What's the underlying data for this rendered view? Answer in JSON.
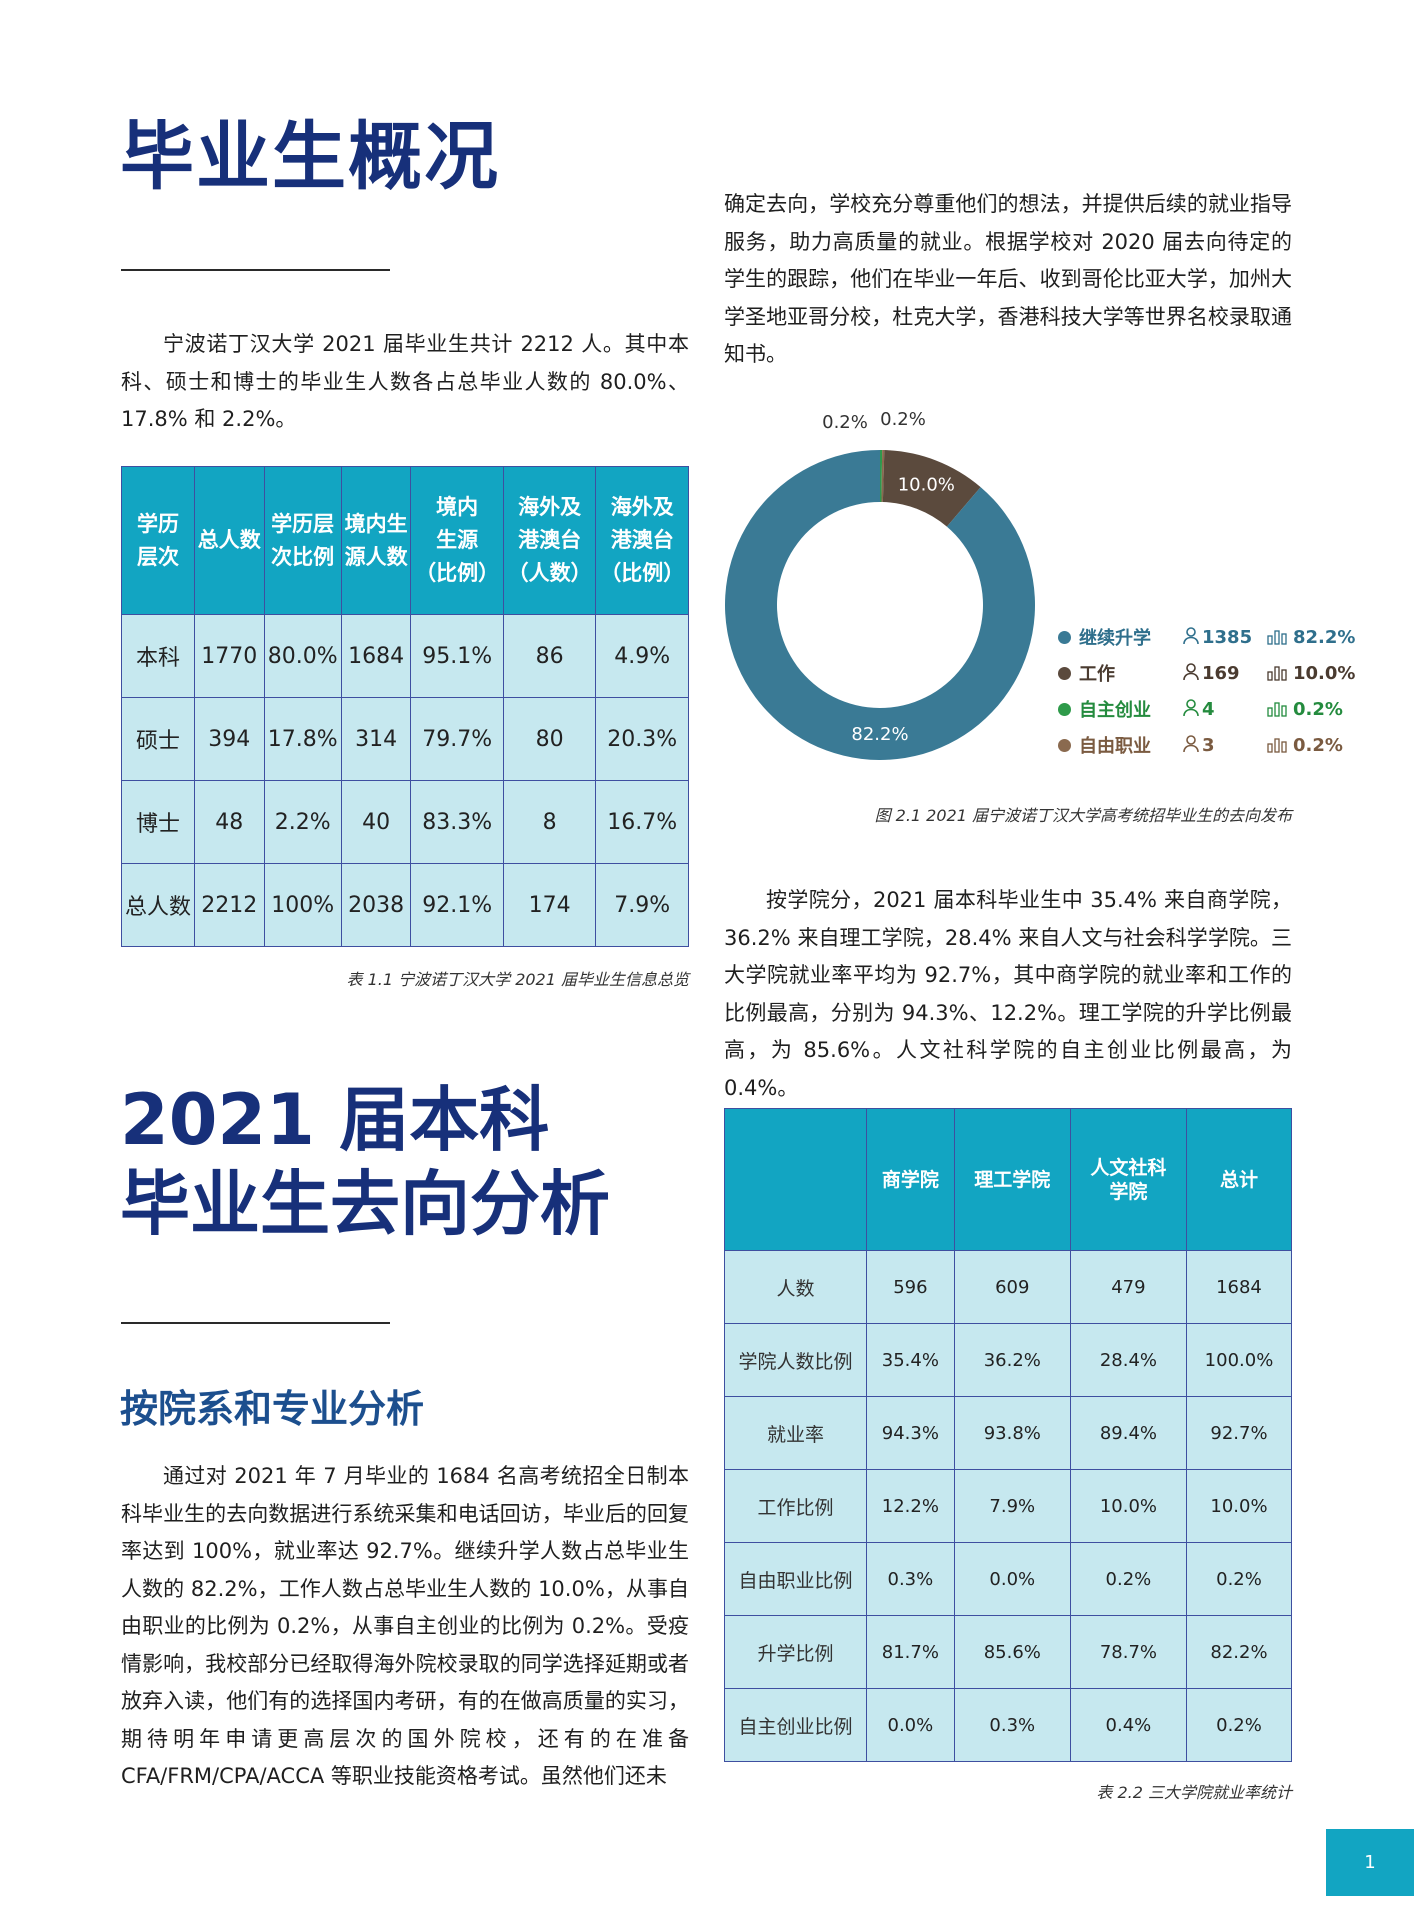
{
  "section1": {
    "title": "毕业生概况",
    "intro": "宁波诺丁汉大学 2021 届毕业生共计 2212 人。其中本科、硕士和博士的毕业生人数各占总毕业人数的 80.0%、17.8% 和 2.2%。"
  },
  "table1": {
    "headers": [
      "学历层次",
      "总人数",
      "学历层次比例",
      "境内生源人数",
      "境内生源（比例）",
      "海外及港澳台（人数）",
      "海外及港澳台（比例）"
    ],
    "header_lines": [
      [
        "学历",
        "层次"
      ],
      [
        "总人数"
      ],
      [
        "学历层",
        "次比例"
      ],
      [
        "境内生",
        "源人数"
      ],
      [
        "境内",
        "生源",
        "（比例）"
      ],
      [
        "海外及",
        "港澳台",
        "（人数）"
      ],
      [
        "海外及",
        "港澳台",
        "（比例）"
      ]
    ],
    "rows": [
      [
        "本科",
        "1770",
        "80.0%",
        "1684",
        "95.1%",
        "86",
        "4.9%"
      ],
      [
        "硕士",
        "394",
        "17.8%",
        "314",
        "79.7%",
        "80",
        "20.3%"
      ],
      [
        "博士",
        "48",
        "2.2%",
        "40",
        "83.3%",
        "8",
        "16.7%"
      ],
      [
        "总人数",
        "2212",
        "100%",
        "2038",
        "92.1%",
        "174",
        "7.9%"
      ]
    ],
    "caption": "表 1.1 宁波诺丁汉大学 2021 届毕业生信息总览"
  },
  "section2": {
    "title_line1": "2021 届本科",
    "title_line2": "毕业生去向分析",
    "subtitle": "按院系和专业分析",
    "para1": "通过对 2021 年 7 月毕业的 1684 名高考统招全日制本科毕业生的去向数据进行系统采集和电话回访，毕业后的回复率达到 100%，就业率达 92.7%。继续升学人数占总毕业生人数的 82.2%，工作人数占总毕业生人数的 10.0%，从事自由职业的比例为 0.2%，从事自主创业的比例为 0.2%。受疫情影响，我校部分已经取得海外院校录取的同学选择延期或者放弃入读，他们有的选择国内考研，有的在做高质量的实习，期待明年申请更高层次的国外院校，还有的在准备 CFA/FRM/CPA/ACCA 等职业技能资格考试。虽然他们还未",
    "para1_cont": "确定去向，学校充分尊重他们的想法，并提供后续的就业指导服务，助力高质量的就业。根据学校对 2020 届去向待定的学生的跟踪，他们在毕业一年后、收到哥伦比亚大学，加州大学圣地亚哥分校，杜克大学，香港科技大学等世界名校录取通知书。",
    "para2": "按学院分，2021 届本科毕业生中 35.4% 来自商学院，36.2% 来自理工学院，28.4% 来自人文与社会科学学院。三大学院就业率平均为 92.7%，其中商学院的就业率和工作的比例最高，分别为 94.3%、12.2%。理工学院的升学比例最高，为 85.6%。人文社科学院的自主创业比例最高，为 0.4%。"
  },
  "chart_data": {
    "type": "pie",
    "title": "",
    "categories": [
      "继续升学",
      "工作",
      "自主创业",
      "自由职业"
    ],
    "values": [
      82.2,
      10.0,
      0.2,
      0.2
    ],
    "counts": [
      1385,
      169,
      4,
      3
    ],
    "labels": [
      "82.2%",
      "10.0%",
      "0.2%",
      "0.2%"
    ],
    "counts_text": [
      "1385",
      "169",
      "4",
      "3"
    ],
    "colors": [
      "#3a7a95",
      "#5b4a3d",
      "#2e9a4a",
      "#8a6a4f"
    ],
    "donut": true,
    "legend": "right",
    "caption": "图 2.1 2021 届宁波诺丁汉大学高考统招毕业生的去向发布"
  },
  "table2": {
    "headers": [
      "",
      "商学院",
      "理工学院",
      "人文社科学院",
      "总计"
    ],
    "header_lines": [
      [
        ""
      ],
      [
        "商学院"
      ],
      [
        "理工学院"
      ],
      [
        "人文社科",
        "学院"
      ],
      [
        "总计"
      ]
    ],
    "rows": [
      [
        "人数",
        "596",
        "609",
        "479",
        "1684"
      ],
      [
        "学院人数比例",
        "35.4%",
        "36.2%",
        "28.4%",
        "100.0%"
      ],
      [
        "就业率",
        "94.3%",
        "93.8%",
        "89.4%",
        "92.7%"
      ],
      [
        "工作比例",
        "12.2%",
        "7.9%",
        "10.0%",
        "10.0%"
      ],
      [
        "自由职业比例",
        "0.3%",
        "0.0%",
        "0.2%",
        "0.2%"
      ],
      [
        "升学比例",
        "81.7%",
        "85.6%",
        "78.7%",
        "82.2%"
      ],
      [
        "自主创业比例",
        "0.0%",
        "0.3%",
        "0.4%",
        "0.2%"
      ]
    ],
    "caption": "表 2.2 三大学院就业率统计"
  },
  "page": {
    "number": "1"
  }
}
